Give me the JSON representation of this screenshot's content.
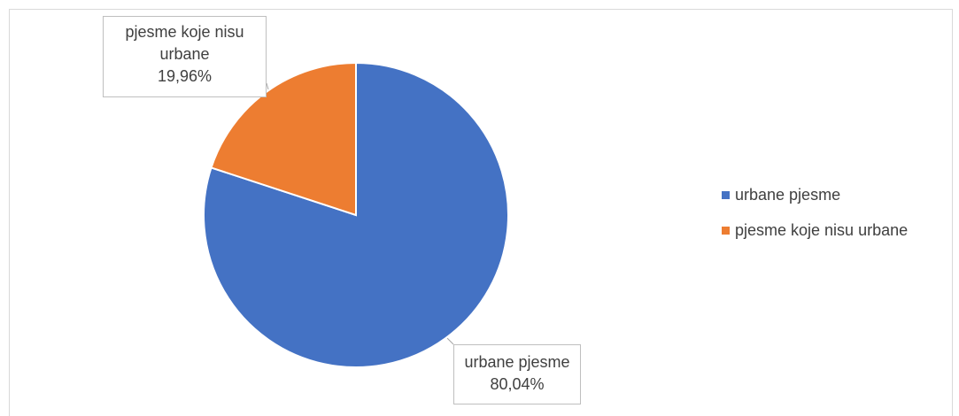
{
  "chart_data": {
    "type": "pie",
    "title": "",
    "categories": [
      "urbane pjesme",
      "pjesme koje nisu urbane"
    ],
    "values": [
      80.04,
      19.96
    ],
    "colors": [
      "#4472c4",
      "#ed7d31"
    ],
    "data_labels": [
      {
        "name": "urbane pjesme",
        "value": "80,04%"
      },
      {
        "name_line1": "pjesme koje nisu",
        "name_line2": "urbane",
        "value": "19,96%"
      }
    ],
    "legend": {
      "placement": "right",
      "entries": [
        "urbane pjesme",
        "pjesme koje nisu urbane"
      ]
    }
  }
}
